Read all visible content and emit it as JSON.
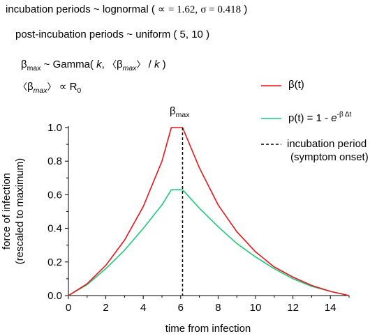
{
  "header": {
    "incubation_prefix": "incubation periods ~ lognormal (",
    "alpha_sym": "∝",
    "alpha_eq": "= 1.62,",
    "sigma_part": "σ = 0.418",
    "incubation_suffix": ")",
    "post_incubation": "post-incubation periods ~ uniform ( 5, 10 )",
    "beta_sym": "β",
    "max_sub": "max",
    "gamma_prefix": "~ Gamma(",
    "k": "k",
    "comma": ",",
    "langle": "〈",
    "rangle": "〉",
    "slash": "/",
    "gamma_suffix": ")",
    "prop_sym": "∝",
    "r0_R": "R",
    "r0_sub": "0"
  },
  "annotation": {
    "beta": "β",
    "sub": "max"
  },
  "legend": {
    "beta_label": "β(t)",
    "p_label_prefix": "p(t)  = 1 -",
    "p_label_e": "e",
    "p_label_exp": "-β Δt",
    "incubation_label": "incubation period",
    "incubation_sub": "(symptom onset)"
  },
  "chart_data": {
    "type": "line",
    "xlabel": "time from infection",
    "ylabel_line1": "force of infection",
    "ylabel_line2": "(rescaled to maximum)",
    "xlim": [
      0,
      15
    ],
    "ylim": [
      0,
      1.0
    ],
    "xticks": [
      "0",
      "2",
      "4",
      "6",
      "8",
      "10",
      "12",
      "14"
    ],
    "yticks": [
      "0.0",
      "0.2",
      "0.4",
      "0.6",
      "0.8",
      "1.0"
    ],
    "grid": false,
    "legend_position": "top-right",
    "incubation_onset_x": 6.1,
    "series": [
      {
        "name": "β(t)",
        "color": "#e8141b",
        "x": [
          0,
          1,
          2,
          3,
          4,
          5,
          5.5,
          6.1,
          7,
          8,
          9,
          10,
          11,
          12,
          13,
          14,
          15
        ],
        "y": [
          0,
          0.07,
          0.18,
          0.33,
          0.53,
          0.8,
          1.0,
          1.0,
          0.76,
          0.54,
          0.38,
          0.26,
          0.17,
          0.11,
          0.06,
          0.025,
          0
        ]
      },
      {
        "name": "p(t)  = 1 - e^{-β Δt}",
        "color": "#1dc97a",
        "x": [
          0,
          1,
          2,
          3,
          4,
          5,
          5.5,
          6.1,
          7,
          8,
          9,
          10,
          11,
          12,
          13,
          14,
          15
        ],
        "y": [
          0,
          0.065,
          0.16,
          0.27,
          0.4,
          0.54,
          0.63,
          0.63,
          0.52,
          0.41,
          0.31,
          0.23,
          0.16,
          0.1,
          0.055,
          0.025,
          0
        ]
      }
    ]
  }
}
